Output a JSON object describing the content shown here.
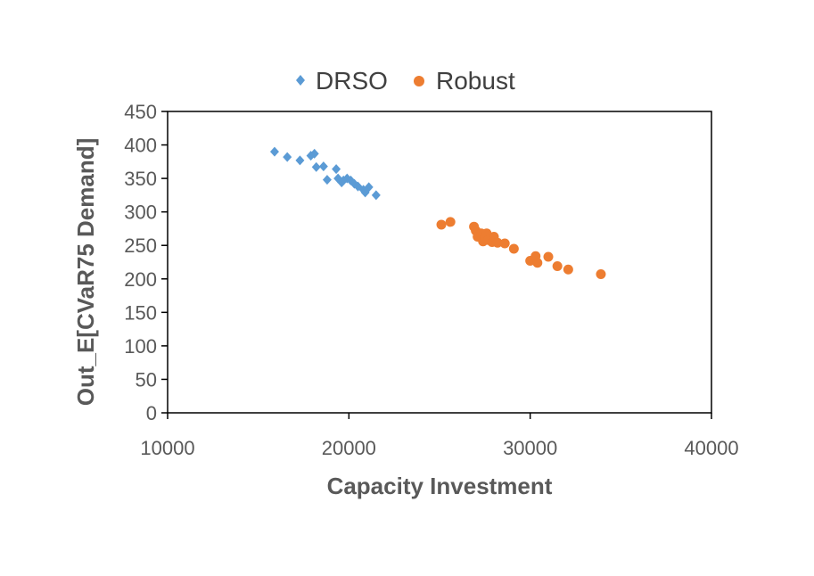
{
  "chart_data": {
    "type": "scatter",
    "xlabel": "Capacity Investment",
    "ylabel": "Out_E[CVaR75 Demand]",
    "xlim": [
      10000,
      40000
    ],
    "ylim": [
      0,
      450
    ],
    "xticks": [
      10000,
      20000,
      30000,
      40000
    ],
    "yticks": [
      0,
      50,
      100,
      150,
      200,
      250,
      300,
      350,
      400,
      450
    ],
    "xtick_labels": [
      "10000",
      "20000",
      "30000",
      "40000"
    ],
    "ytick_labels": [
      "0",
      "50",
      "100",
      "150",
      "200",
      "250",
      "300",
      "350",
      "400",
      "450"
    ],
    "legend_position": "top",
    "series": [
      {
        "name": "DRSO",
        "marker": "diamond",
        "color": "#5B9BD5",
        "points": [
          [
            15900,
            390
          ],
          [
            16600,
            382
          ],
          [
            17300,
            377
          ],
          [
            17900,
            384
          ],
          [
            18100,
            387
          ],
          [
            18200,
            367
          ],
          [
            18600,
            368
          ],
          [
            18800,
            348
          ],
          [
            19300,
            364
          ],
          [
            19400,
            350
          ],
          [
            19600,
            344
          ],
          [
            19700,
            347
          ],
          [
            19900,
            350
          ],
          [
            20100,
            347
          ],
          [
            20300,
            342
          ],
          [
            20500,
            338
          ],
          [
            20800,
            333
          ],
          [
            20900,
            329
          ],
          [
            21100,
            337
          ],
          [
            21500,
            325
          ]
        ]
      },
      {
        "name": "Robust",
        "marker": "circle",
        "color": "#ED7D31",
        "points": [
          [
            25100,
            281
          ],
          [
            25600,
            285
          ],
          [
            26900,
            278
          ],
          [
            27000,
            272
          ],
          [
            27100,
            263
          ],
          [
            27300,
            268
          ],
          [
            27400,
            256
          ],
          [
            27500,
            261
          ],
          [
            27600,
            268
          ],
          [
            27700,
            258
          ],
          [
            27900,
            255
          ],
          [
            28000,
            263
          ],
          [
            28200,
            254
          ],
          [
            28600,
            253
          ],
          [
            29100,
            245
          ],
          [
            30000,
            227
          ],
          [
            30300,
            234
          ],
          [
            30400,
            224
          ],
          [
            31000,
            233
          ],
          [
            31500,
            219
          ],
          [
            32100,
            214
          ],
          [
            33900,
            207
          ]
        ]
      }
    ]
  }
}
